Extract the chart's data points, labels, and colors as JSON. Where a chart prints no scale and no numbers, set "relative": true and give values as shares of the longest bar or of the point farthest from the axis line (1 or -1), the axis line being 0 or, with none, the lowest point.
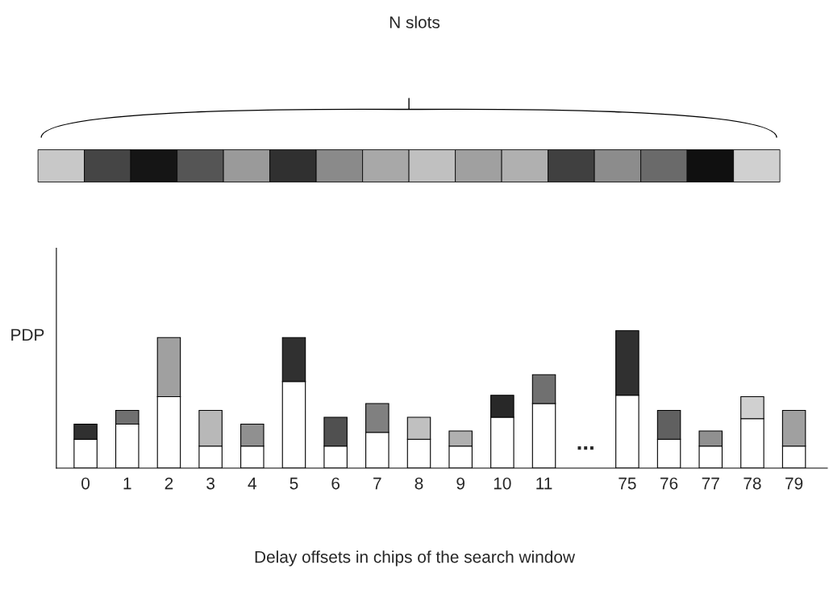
{
  "chart_data": {
    "type": "bar",
    "title": "N slots",
    "ylabel": "PDP",
    "xlabel": "Delay offsets in chips of the search window",
    "categories": [
      "0",
      "1",
      "2",
      "3",
      "4",
      "5",
      "6",
      "7",
      "8",
      "9",
      "10",
      "11",
      null,
      "75",
      "76",
      "77",
      "78",
      "79"
    ],
    "relative": true,
    "stacked": true,
    "legend": false,
    "grid": false,
    "annotations": [
      "..."
    ],
    "series": [
      {
        "color": "#ffffff",
        "values": [
          0.21,
          0.32,
          0.52,
          0.16,
          0.16,
          0.63,
          0.16,
          0.26,
          0.21,
          0.16,
          0.37,
          0.47,
          null,
          0.53,
          0.21,
          0.16,
          0.36,
          0.16
        ]
      },
      {
        "colors": [
          "#303030",
          "#707070",
          "#a0a0a0",
          "#b8b8b8",
          "#909090",
          "#303030",
          "#505050",
          "#808080",
          "#c0c0c0",
          "#b0b0b0",
          "#282828",
          "#707070",
          "#ffffff",
          "#303030",
          "#606060",
          "#909090",
          "#d0d0d0",
          "#a0a0a0"
        ],
        "values": [
          0.11,
          0.1,
          0.43,
          0.26,
          0.16,
          0.32,
          0.21,
          0.21,
          0.16,
          0.11,
          0.16,
          0.21,
          null,
          0.47,
          0.21,
          0.11,
          0.16,
          0.26
        ]
      }
    ]
  }
}
